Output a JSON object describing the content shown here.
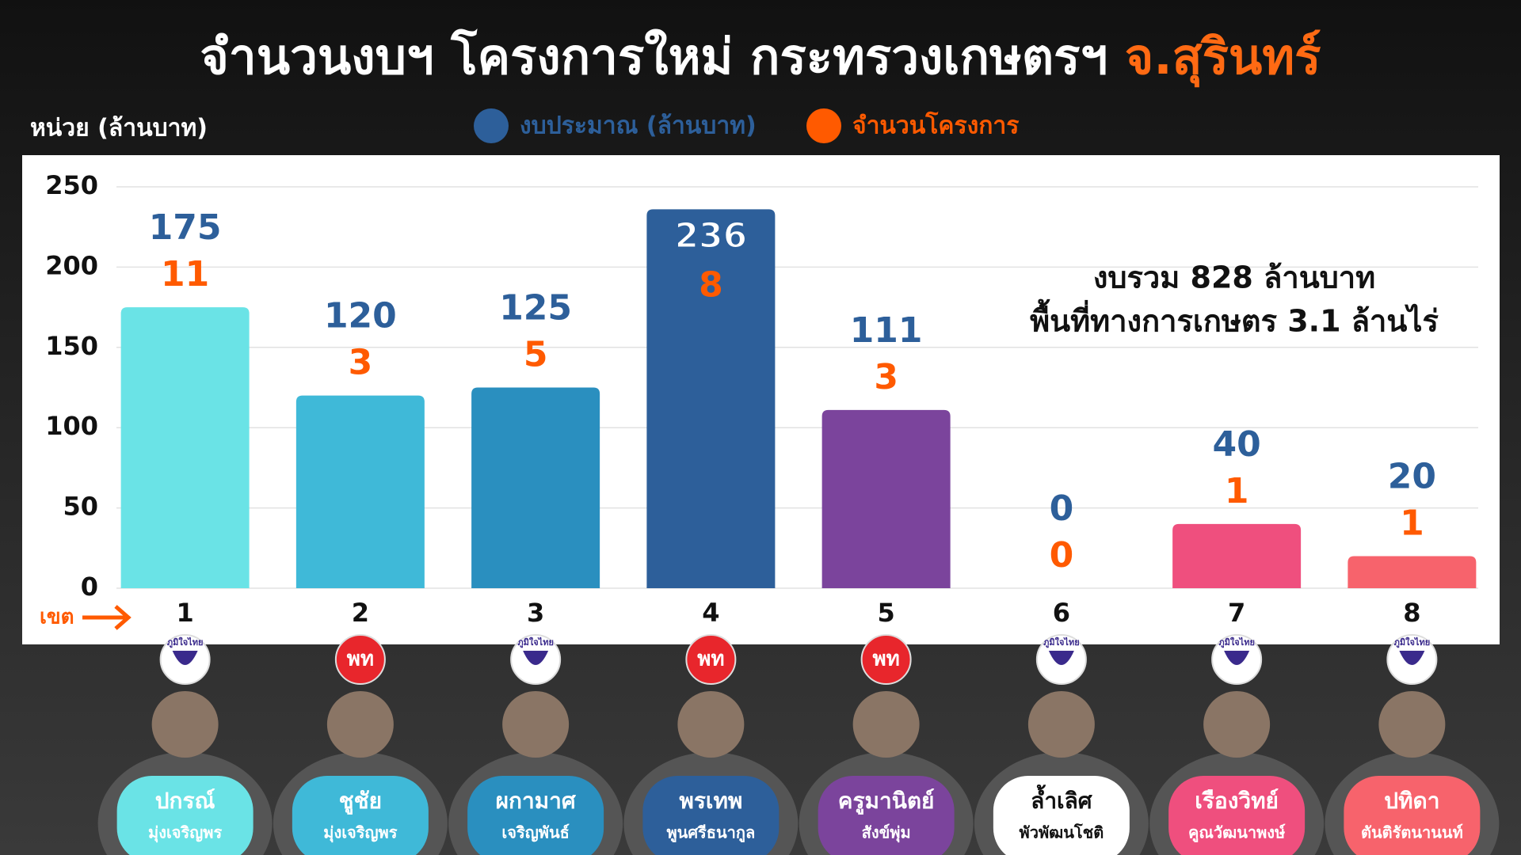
{
  "chart_data": {
    "type": "bar",
    "title": "จำนวนงบฯ โครงการใหม่ กระทรวงเกษตรฯ",
    "title_place": "จ.สุรินทร์",
    "y_label": "หน่วย (ล้านบาท)",
    "x_label": "เขต",
    "categories": [
      "1",
      "2",
      "3",
      "4",
      "5",
      "6",
      "7",
      "8"
    ],
    "series": [
      {
        "name": "งบประมาณ (ล้านบาท)",
        "color": "#2d5f9a",
        "values": [
          175,
          120,
          125,
          236,
          111,
          0,
          40,
          20
        ],
        "colors": [
          "#6ae3e6",
          "#3fb9d8",
          "#2a8fbf",
          "#2d5f9a",
          "#7b449c",
          null,
          "#ef4f7e",
          "#f7636c"
        ]
      },
      {
        "name": "จำนวนโครงการ",
        "color": "#ff5a00",
        "values": [
          11,
          3,
          5,
          8,
          3,
          0,
          1,
          1
        ]
      }
    ],
    "annotations": [
      "งบรวม 828 ล้านบาท",
      "พื้นที่ทางการเกษตร 3.1 ล้านไร่"
    ],
    "ylim": [
      0,
      250
    ],
    "yticks": [
      0,
      50,
      100,
      150,
      200,
      250
    ],
    "grid": true
  },
  "candidates": [
    {
      "party": "ภูมิใจไทย",
      "name": "ปกรณ์",
      "surname": "มุ่งเจริญพร",
      "color": "#6ae3e6"
    },
    {
      "party": "พท",
      "name": "ชูชัย",
      "surname": "มุ่งเจริญพร",
      "color": "#3fb9d8"
    },
    {
      "party": "ภูมิใจไทย",
      "name": "ผกามาศ",
      "surname": "เจริญพันธ์",
      "color": "#2a8fbf"
    },
    {
      "party": "พท",
      "name": "พรเทพ",
      "surname": "พูนศรีธนากูล",
      "color": "#2d5f9a"
    },
    {
      "party": "พท",
      "name": "ครูมานิตย์",
      "surname": "สังข์พุ่ม",
      "color": "#7b449c"
    },
    {
      "party": "ภูมิใจไทย",
      "name": "ล้ำเลิศ",
      "surname": "พัวพัฒนโชติ",
      "color": "#ffffff"
    },
    {
      "party": "ภูมิใจไทย",
      "name": "เรืองวิทย์",
      "surname": "คูณวัฒนาพงษ์",
      "color": "#ef4f7e"
    },
    {
      "party": "ภูมิใจไทย",
      "name": "ปทิดา",
      "surname": "ตันติรัตนานนท์",
      "color": "#f7636c"
    }
  ]
}
